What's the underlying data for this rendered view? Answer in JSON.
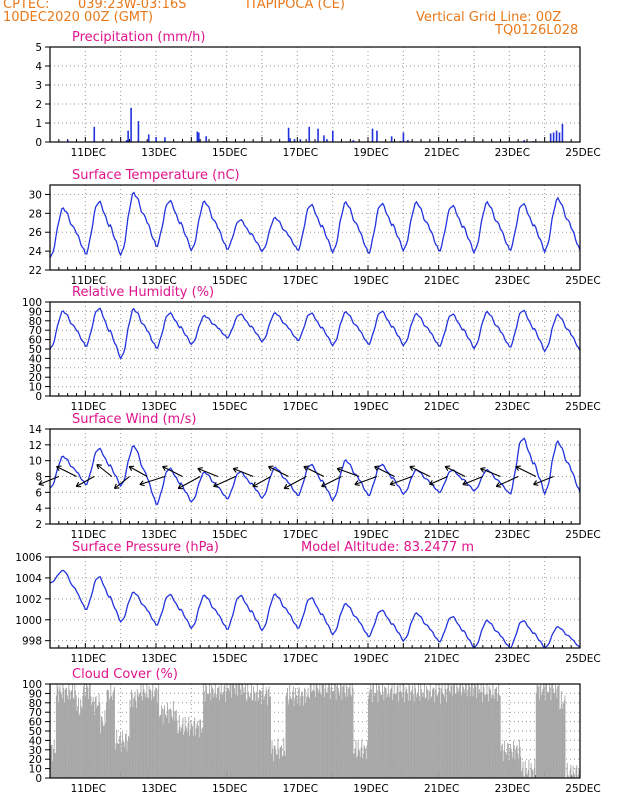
{
  "header": {
    "source": "CPTEC:",
    "coords": "039:23W-03:16S",
    "station": "ITAPIPOCA (CE)",
    "init_time": "10DEC2020 00Z (GMT)",
    "grid_note": "Vertical Grid Line: 00Z",
    "code": "TQ0126L028"
  },
  "colors": {
    "header": "#e8791b",
    "title": "#e0148c",
    "line": "#2233dd",
    "cloud": "#a6a6a6",
    "grid": "#9a9a9a"
  },
  "chart_data": [
    {
      "id": "precip",
      "type": "bar",
      "title": "Precipitation (mm/h)",
      "xlabels": [
        "11DEC",
        "13DEC",
        "15DEC",
        "17DEC",
        "19DEC",
        "21DEC",
        "23DEC",
        "25DEC"
      ],
      "ylim": [
        0,
        5
      ],
      "yticks": [
        0,
        1,
        2,
        3,
        4,
        5
      ],
      "x_hours": [
        12,
        30,
        52,
        53,
        55,
        60,
        67,
        72,
        78,
        100,
        101,
        106,
        118,
        162,
        163,
        166,
        170,
        176,
        182,
        186,
        188,
        192,
        206,
        219,
        222,
        232,
        238,
        240,
        243,
        280,
        322,
        328,
        340,
        342,
        344,
        346,
        348
      ],
      "values": [
        0.1,
        0.8,
        0.1,
        0.6,
        1.8,
        1.1,
        0.4,
        0.25,
        0.25,
        0.55,
        0.5,
        0.3,
        0.05,
        0.75,
        0.2,
        0.15,
        0.15,
        0.8,
        0.7,
        0.35,
        0.15,
        0.6,
        0.1,
        0.7,
        0.6,
        0.3,
        0.05,
        0.5,
        0.1,
        0.05,
        0.1,
        0.05,
        0.45,
        0.5,
        0.6,
        0.5,
        0.95
      ]
    },
    {
      "id": "temperature",
      "type": "line",
      "title": "Surface Temperature (nC)",
      "xlabels": [
        "11DEC",
        "13DEC",
        "15DEC",
        "17DEC",
        "19DEC",
        "21DEC",
        "23DEC",
        "25DEC"
      ],
      "ylim": [
        22,
        31
      ],
      "yticks": [
        22,
        24,
        26,
        28,
        30
      ],
      "daily_max": [
        28.5,
        29.2,
        30.1,
        29.3,
        29.2,
        27.3,
        27.5,
        28.9,
        29.1,
        29.0,
        29.1,
        28.8,
        29.1,
        29.0,
        29.5
      ],
      "daily_min": [
        23.3,
        23.7,
        23.6,
        24.5,
        24.1,
        24.2,
        24.0,
        24.1,
        23.9,
        23.8,
        24.1,
        24.0,
        23.9,
        24.1,
        24.0
      ]
    },
    {
      "id": "humidity",
      "type": "line",
      "title": "Relative Humidity (%)",
      "xlabels": [
        "11DEC",
        "13DEC",
        "15DEC",
        "17DEC",
        "19DEC",
        "21DEC",
        "23DEC",
        "25DEC"
      ],
      "ylim": [
        0,
        100
      ],
      "yticks": [
        0,
        10,
        20,
        30,
        40,
        50,
        60,
        70,
        80,
        90,
        100
      ],
      "daily_max": [
        90,
        93,
        92,
        88,
        85,
        87,
        88,
        88,
        89,
        90,
        87,
        87,
        89,
        91,
        86
      ],
      "daily_min": [
        50,
        53,
        40,
        51,
        55,
        62,
        58,
        59,
        54,
        55,
        54,
        53,
        51,
        52,
        48
      ]
    },
    {
      "id": "wind",
      "type": "line",
      "title": "Surface Wind (m/s)",
      "xlabels": [
        "11DEC",
        "13DEC",
        "15DEC",
        "17DEC",
        "19DEC",
        "21DEC",
        "23DEC",
        "25DEC"
      ],
      "ylim": [
        2,
        14
      ],
      "yticks": [
        2,
        4,
        6,
        8,
        10,
        12,
        14
      ],
      "daily_max": [
        10.5,
        11.5,
        11.8,
        9.0,
        8.5,
        8.6,
        9.1,
        9.5,
        10.0,
        9.5,
        8.8,
        8.8,
        8.8,
        12.8,
        12.3
      ],
      "daily_min": [
        6.5,
        7.0,
        6.8,
        4.5,
        4.8,
        5.2,
        5.3,
        5.6,
        5.0,
        5.6,
        5.8,
        6.0,
        6.2,
        5.8,
        5.9
      ],
      "barb_hours": [
        6,
        18,
        30,
        42,
        54,
        66,
        78,
        90,
        102,
        114,
        126,
        138,
        150,
        162,
        174,
        186,
        198,
        210,
        222,
        234,
        246,
        258,
        270,
        282,
        294,
        306,
        318,
        330,
        342
      ],
      "barb_dx": [
        -20,
        -20,
        -18,
        -15,
        -15,
        -18,
        -25,
        -20,
        -22,
        -20,
        -22,
        -20,
        -18,
        -20,
        -22,
        -20,
        -20,
        -22,
        -22,
        -20,
        -22,
        -20,
        -18,
        -20,
        -20,
        -20,
        -22,
        -20,
        -20
      ],
      "barb_dy": [
        8,
        -10,
        10,
        -12,
        12,
        -10,
        8,
        -10,
        12,
        -8,
        10,
        -8,
        10,
        -10,
        12,
        -10,
        10,
        -8,
        8,
        -10,
        8,
        -10,
        8,
        -10,
        8,
        -8,
        10,
        -10,
        8
      ]
    },
    {
      "id": "pressure",
      "type": "line",
      "title": "Surface Pressure (hPa)",
      "annotation": "Model Altitude: 83.2477 m",
      "xlabels": [
        "11DEC",
        "13DEC",
        "15DEC",
        "17DEC",
        "19DEC",
        "21DEC",
        "23DEC",
        "25DEC"
      ],
      "ylim": [
        997.3,
        1006
      ],
      "yticks": [
        998,
        1000,
        1002,
        1004,
        1006
      ],
      "daily_max": [
        1004.7,
        1004.1,
        1002.6,
        1002.4,
        1002.3,
        1002.3,
        1002.4,
        1002.1,
        1001.5,
        1000.9,
        1000.6,
        1000.3,
        999.9,
        999.9,
        999.3
      ],
      "daily_min": [
        1003.5,
        1001.0,
        999.8,
        999.5,
        999.2,
        999.1,
        999.0,
        999.2,
        998.6,
        998.4,
        998.0,
        997.9,
        997.3,
        997.3,
        997.3
      ]
    },
    {
      "id": "cloud",
      "type": "bar",
      "title": "Cloud Cover (%)",
      "xlabels": [
        "11DEC",
        "13DEC",
        "15DEC",
        "17DEC",
        "19DEC",
        "21DEC",
        "23DEC",
        "25DEC"
      ],
      "ylim": [
        0,
        100
      ],
      "yticks": [
        0,
        10,
        20,
        30,
        40,
        50,
        60,
        70,
        80,
        90,
        100
      ],
      "segments": [
        [
          0,
          4,
          30
        ],
        [
          4,
          18,
          92
        ],
        [
          18,
          22,
          75
        ],
        [
          22,
          28,
          95
        ],
        [
          28,
          34,
          80
        ],
        [
          34,
          38,
          60
        ],
        [
          38,
          44,
          90
        ],
        [
          44,
          54,
          40
        ],
        [
          54,
          60,
          85
        ],
        [
          60,
          74,
          92
        ],
        [
          74,
          86,
          70
        ],
        [
          86,
          104,
          55
        ],
        [
          104,
          120,
          93
        ],
        [
          120,
          132,
          98
        ],
        [
          132,
          150,
          90
        ],
        [
          150,
          160,
          30
        ],
        [
          160,
          176,
          88
        ],
        [
          176,
          196,
          96
        ],
        [
          196,
          206,
          95
        ],
        [
          206,
          216,
          30
        ],
        [
          216,
          240,
          93
        ],
        [
          240,
          270,
          92
        ],
        [
          270,
          292,
          97
        ],
        [
          292,
          306,
          92
        ],
        [
          306,
          320,
          30
        ],
        [
          320,
          330,
          8
        ],
        [
          330,
          346,
          95
        ],
        [
          346,
          350,
          80
        ],
        [
          350,
          360,
          5
        ]
      ]
    }
  ]
}
